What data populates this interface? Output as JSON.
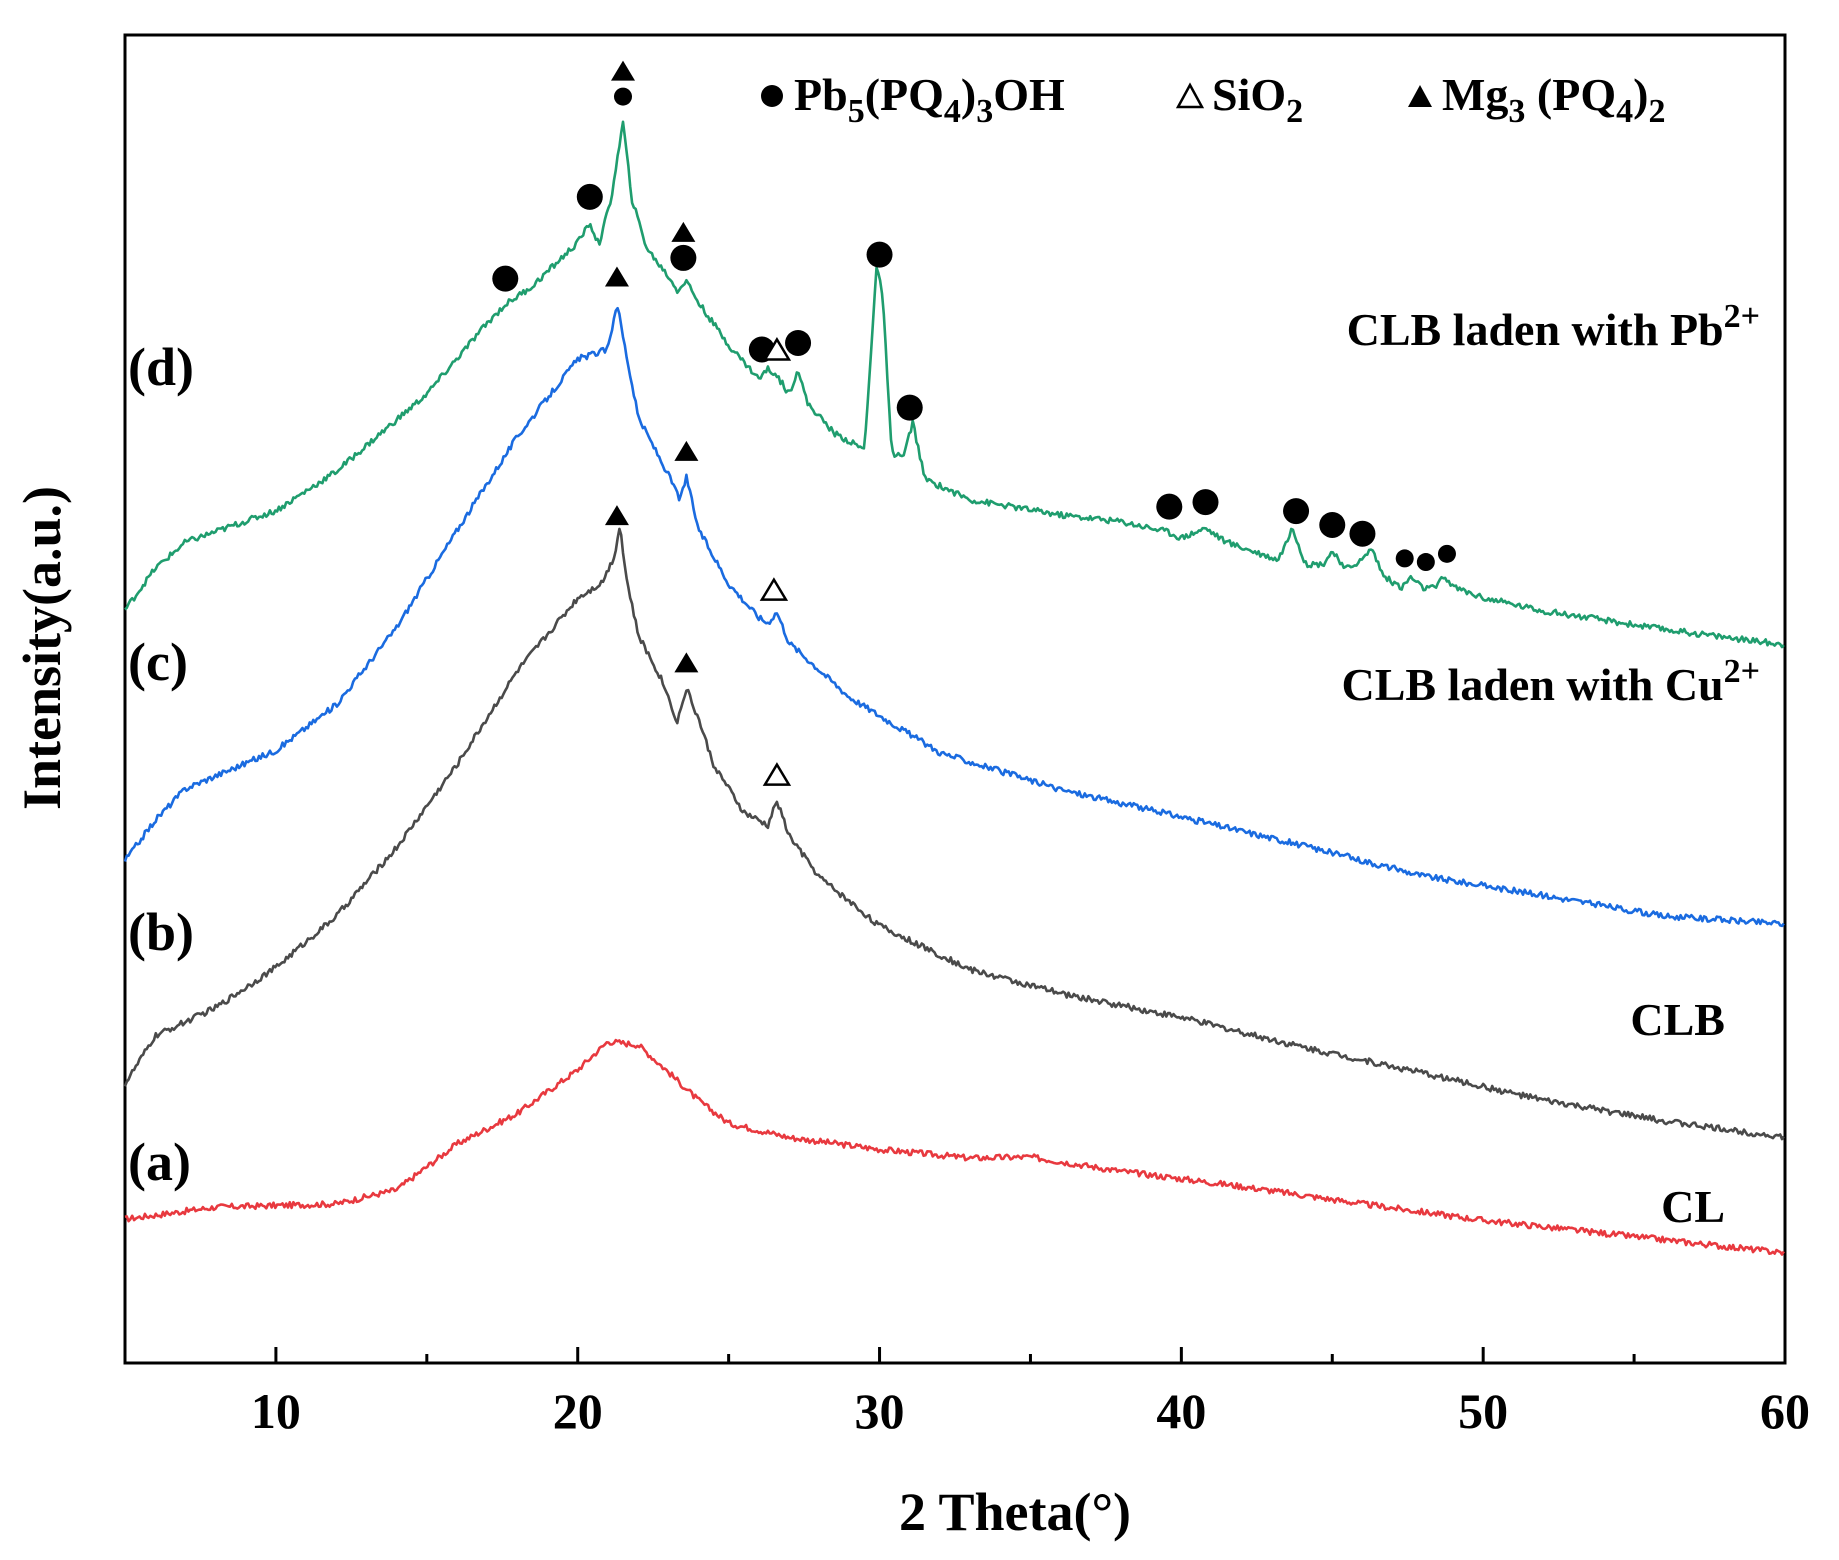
{
  "chart_data": {
    "type": "line",
    "title": "",
    "xlabel": "2 Theta(°)",
    "ylabel": "Intensity(a.u.)",
    "xlim": [
      5,
      60
    ],
    "xticks": [
      10,
      20,
      30,
      40,
      50,
      60
    ],
    "ylim": [
      0,
      100
    ],
    "y_ticks_shown": false,
    "legend": {
      "placement": "top-right",
      "entries": [
        {
          "marker": "filled-circle",
          "label": "Pb5(PQ4)3OH",
          "parts": [
            {
              "t": "Pb"
            },
            {
              "s": "5"
            },
            {
              "t": "(PQ"
            },
            {
              "s": "4"
            },
            {
              "t": ")"
            },
            {
              "s": "3"
            },
            {
              "t": "OH"
            }
          ]
        },
        {
          "marker": "open-triangle",
          "label": "SiO2",
          "parts": [
            {
              "t": "SiO"
            },
            {
              "s": "2"
            }
          ]
        },
        {
          "marker": "filled-triangle",
          "label": "Mg3 (PQ4)2",
          "parts": [
            {
              "t": "Mg"
            },
            {
              "s": "3"
            },
            {
              "t": " (PQ"
            },
            {
              "s": "4"
            },
            {
              "t": ")"
            },
            {
              "s": "2"
            }
          ]
        }
      ]
    },
    "series": [
      {
        "id": "(a)",
        "name": "CL",
        "label_parts": [
          {
            "t": "CL"
          }
        ],
        "color": "#e8393f",
        "points": [
          [
            5,
            6.5
          ],
          [
            8,
            7.6
          ],
          [
            12,
            7.9
          ],
          [
            14,
            9.2
          ],
          [
            16,
            13.4
          ],
          [
            18,
            16.2
          ],
          [
            20,
            20.2
          ],
          [
            21,
            22.8
          ],
          [
            22,
            22.5
          ],
          [
            23,
            20.0
          ],
          [
            24,
            17.4
          ],
          [
            25,
            15.3
          ],
          [
            27,
            14.0
          ],
          [
            30,
            12.9
          ],
          [
            33,
            12.1
          ],
          [
            35,
            12.2
          ],
          [
            38,
            10.9
          ],
          [
            42,
            9.5
          ],
          [
            46,
            7.9
          ],
          [
            50,
            6.4
          ],
          [
            55,
            4.9
          ],
          [
            60,
            3.4
          ]
        ]
      },
      {
        "id": "(b)",
        "name": "CLB",
        "label_parts": [
          {
            "t": "CLB"
          }
        ],
        "color": "#4a4a4a",
        "points": [
          [
            5,
            18.9
          ],
          [
            6,
            23.3
          ],
          [
            8,
            25.9
          ],
          [
            10,
            29.6
          ],
          [
            12,
            34.3
          ],
          [
            14,
            40.6
          ],
          [
            16,
            48.2
          ],
          [
            18,
            56.8
          ],
          [
            20,
            63.5
          ],
          [
            20.8,
            64.9
          ],
          [
            21.2,
            67.2
          ],
          [
            21.4,
            70.2
          ],
          [
            21.6,
            65.5
          ],
          [
            22,
            60.1
          ],
          [
            22.8,
            55.9
          ],
          [
            23.3,
            52.1
          ],
          [
            23.6,
            55.2
          ],
          [
            24,
            52.4
          ],
          [
            24.5,
            48.2
          ],
          [
            25.5,
            43.8
          ],
          [
            26.3,
            42.6
          ],
          [
            26.6,
            44.9
          ],
          [
            27,
            41.7
          ],
          [
            28,
            37.9
          ],
          [
            30,
            33.4
          ],
          [
            33,
            29.4
          ],
          [
            36,
            27.2
          ],
          [
            40,
            25.0
          ],
          [
            44,
            22.3
          ],
          [
            48,
            19.9
          ],
          [
            52,
            17.4
          ],
          [
            56,
            15.5
          ],
          [
            60,
            14.0
          ]
        ]
      },
      {
        "id": "(c)",
        "name": "CLB laden with Cu2+",
        "label_parts": [
          {
            "t": "CLB laden with Cu"
          },
          {
            "sup": "2+"
          }
        ],
        "color": "#1a6be0",
        "points": [
          [
            5,
            39.4
          ],
          [
            6,
            43.1
          ],
          [
            7,
            46.0
          ],
          [
            10,
            49.5
          ],
          [
            12,
            53.7
          ],
          [
            14,
            60.8
          ],
          [
            16,
            69.7
          ],
          [
            18,
            78.3
          ],
          [
            20,
            85.4
          ],
          [
            21,
            86.3
          ],
          [
            21.3,
            90.6
          ],
          [
            21.5,
            87.5
          ],
          [
            22,
            80.1
          ],
          [
            23,
            74.8
          ],
          [
            23.4,
            72.5
          ],
          [
            23.6,
            74.6
          ],
          [
            24,
            69.8
          ],
          [
            25,
            64.8
          ],
          [
            26,
            61.7
          ],
          [
            26.3,
            61.2
          ],
          [
            26.6,
            62.2
          ],
          [
            27,
            59.4
          ],
          [
            29,
            54.4
          ],
          [
            32,
            49.3
          ],
          [
            36,
            45.9
          ],
          [
            40,
            43.4
          ],
          [
            44,
            40.8
          ],
          [
            48,
            38.0
          ],
          [
            52,
            36.2
          ],
          [
            56,
            34.3
          ],
          [
            60,
            33.6
          ]
        ]
      },
      {
        "id": "(d)",
        "name": "CLB laden with Pb2+",
        "label_parts": [
          {
            "t": "CLB laden with Pb"
          },
          {
            "sup": "2+"
          }
        ],
        "color": "#1f9d6e",
        "points": [
          [
            5,
            62.4
          ],
          [
            6,
            66.2
          ],
          [
            7,
            68.6
          ],
          [
            10,
            71.5
          ],
          [
            12,
            75.1
          ],
          [
            15,
            82.2
          ],
          [
            17,
            88.7
          ],
          [
            17.6,
            90.4
          ],
          [
            18.5,
            92.1
          ],
          [
            20,
            96.1
          ],
          [
            20.4,
            97.9
          ],
          [
            20.7,
            95.9
          ],
          [
            21.1,
            100.0
          ],
          [
            21.5,
            107.1
          ],
          [
            21.8,
            100.0
          ],
          [
            22.3,
            95.5
          ],
          [
            23,
            93.0
          ],
          [
            23.3,
            91.7
          ],
          [
            23.6,
            92.6
          ],
          [
            24,
            90.6
          ],
          [
            25,
            86.7
          ],
          [
            26,
            83.6
          ],
          [
            26.3,
            84.5
          ],
          [
            26.6,
            83.9
          ],
          [
            27,
            82.2
          ],
          [
            27.3,
            84.5
          ],
          [
            27.6,
            81.4
          ],
          [
            28.5,
            78.6
          ],
          [
            29.5,
            77.1
          ],
          [
            29.9,
            93.8
          ],
          [
            30.1,
            91.4
          ],
          [
            30.4,
            76.8
          ],
          [
            30.8,
            76.5
          ],
          [
            31.1,
            79.6
          ],
          [
            31.5,
            74.4
          ],
          [
            33,
            72.5
          ],
          [
            36,
            71.1
          ],
          [
            38,
            70.5
          ],
          [
            39.5,
            69.6
          ],
          [
            40,
            69.0
          ],
          [
            40.8,
            69.9
          ],
          [
            41.5,
            68.6
          ],
          [
            43.2,
            67.0
          ],
          [
            43.7,
            69.9
          ],
          [
            44.1,
            66.6
          ],
          [
            44.7,
            66.6
          ],
          [
            45,
            67.8
          ],
          [
            45.4,
            66.1
          ],
          [
            46,
            67.0
          ],
          [
            46.3,
            68.1
          ],
          [
            46.7,
            65.5
          ],
          [
            47.3,
            64.4
          ],
          [
            47.6,
            65.4
          ],
          [
            48.0,
            64.4
          ],
          [
            48.4,
            64.4
          ],
          [
            48.7,
            65.4
          ],
          [
            49.1,
            64.4
          ],
          [
            50,
            63.5
          ],
          [
            52,
            62.3
          ],
          [
            56,
            60.6
          ],
          [
            60,
            59.2
          ]
        ]
      }
    ],
    "markers": [
      {
        "series": "(d)",
        "type": "filled-circle",
        "x": 17.6,
        "big": true
      },
      {
        "series": "(d)",
        "type": "filled-circle",
        "x": 20.4,
        "big": true
      },
      {
        "series": "(d)",
        "type": "filled-circle",
        "x": 21.5,
        "big": false
      },
      {
        "series": "(d)",
        "type": "filled-triangle",
        "x": 21.5
      },
      {
        "series": "(d)",
        "type": "filled-circle",
        "x": 23.5,
        "big": true
      },
      {
        "series": "(d)",
        "type": "filled-triangle",
        "x": 23.5
      },
      {
        "series": "(d)",
        "type": "filled-circle",
        "x": 26.1,
        "big": true
      },
      {
        "series": "(d)",
        "type": "open-triangle",
        "x": 26.6
      },
      {
        "series": "(d)",
        "type": "filled-circle",
        "x": 27.3,
        "big": true
      },
      {
        "series": "(d)",
        "type": "filled-circle",
        "x": 30.0,
        "big": true
      },
      {
        "series": "(d)",
        "type": "filled-circle",
        "x": 31.0,
        "big": true
      },
      {
        "series": "(d)",
        "type": "filled-circle",
        "x": 39.6,
        "big": true
      },
      {
        "series": "(d)",
        "type": "filled-circle",
        "x": 40.8,
        "big": true
      },
      {
        "series": "(d)",
        "type": "filled-circle",
        "x": 43.8,
        "big": true
      },
      {
        "series": "(d)",
        "type": "filled-circle",
        "x": 45.0,
        "big": true
      },
      {
        "series": "(d)",
        "type": "filled-circle",
        "x": 46.0,
        "big": true
      },
      {
        "series": "(d)",
        "type": "filled-circle",
        "x": 47.4,
        "big": false
      },
      {
        "series": "(d)",
        "type": "filled-circle",
        "x": 48.1,
        "big": false
      },
      {
        "series": "(d)",
        "type": "filled-circle",
        "x": 48.8,
        "big": false
      },
      {
        "series": "(c)",
        "type": "filled-triangle",
        "x": 21.3
      },
      {
        "series": "(c)",
        "type": "filled-triangle",
        "x": 23.6
      },
      {
        "series": "(c)",
        "type": "open-triangle",
        "x": 26.5
      },
      {
        "series": "(b)",
        "type": "filled-triangle",
        "x": 21.3
      },
      {
        "series": "(b)",
        "type": "filled-triangle",
        "x": 23.6
      },
      {
        "series": "(b)",
        "type": "open-triangle",
        "x": 26.6
      }
    ]
  }
}
